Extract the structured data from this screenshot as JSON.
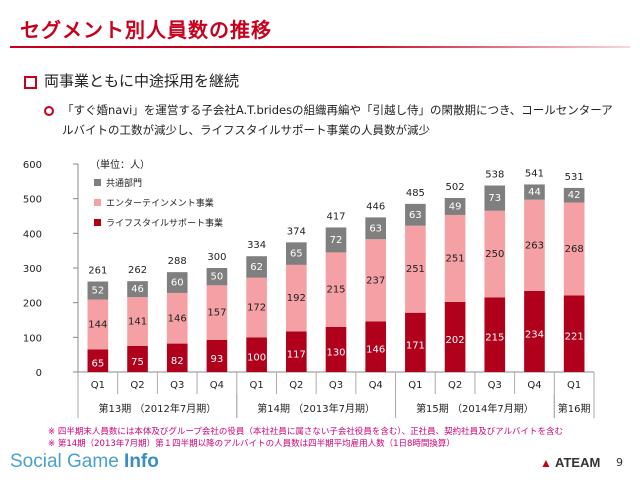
{
  "slide": {
    "title": "セグメント別人員数の推移",
    "headline": "両事業ともに中途採用を継続",
    "description": "「すぐ婚navi」を運営する子会社A.T.bridesの組織再編や「引越し侍」の閑散期につき、コールセンターアルバイトの工数が減少し、ライフスタイルサポート事業の人員数が減少",
    "note1": "※ 四半期末人員数には本体及びグループ会社の役員（本社社員に属さない子会社役員を含む）、正社員、契約社員及びアルバイトを含む",
    "note2": "※ 第14期（2013年7月期）第１四半期以降のアルバイトの人員数は四半期平均雇用人数（1日8時間換算）",
    "brand_left_prefix": "Social Game ",
    "brand_left_bold": "Info",
    "brand_right_mark": "▲",
    "brand_right": "ATEAM",
    "page_number": "9"
  },
  "colors": {
    "accent": "#c8001e",
    "life": "#b0001c",
    "ent": "#f4a0a4",
    "common": "#7f7f7f"
  },
  "chart_data": {
    "type": "bar",
    "stacked": true,
    "unit_label": "（単位：人）",
    "categories": [
      "Q1",
      "Q2",
      "Q3",
      "Q4",
      "Q1",
      "Q2",
      "Q3",
      "Q4",
      "Q1",
      "Q2",
      "Q3",
      "Q4",
      "Q1"
    ],
    "groups": [
      {
        "label": "第13期 （2012年7月期）",
        "start": 0,
        "end": 3
      },
      {
        "label": "第14期 （2013年7月期）",
        "start": 4,
        "end": 7
      },
      {
        "label": "第15期 （2014年7月期）",
        "start": 8,
        "end": 11
      },
      {
        "label": "第16期",
        "start": 12,
        "end": 12
      }
    ],
    "series": [
      {
        "name": "ライフスタイルサポート事業",
        "color": "#b0001c",
        "values": [
          65,
          75,
          82,
          93,
          100,
          117,
          130,
          146,
          171,
          202,
          215,
          234,
          221
        ]
      },
      {
        "name": "エンターテインメント事業",
        "color": "#f4a0a4",
        "values": [
          144,
          141,
          146,
          157,
          172,
          192,
          215,
          237,
          251,
          251,
          250,
          263,
          268
        ]
      },
      {
        "name": "共通部門",
        "color": "#7f7f7f",
        "values": [
          52,
          46,
          60,
          50,
          62,
          65,
          72,
          63,
          63,
          49,
          73,
          44,
          42
        ]
      }
    ],
    "totals": [
      261,
      262,
      288,
      300,
      334,
      374,
      417,
      446,
      485,
      502,
      538,
      541,
      531
    ],
    "ylim": [
      0,
      600
    ],
    "yticks": [
      0,
      100,
      200,
      300,
      400,
      500,
      600
    ],
    "legend_order": [
      "共通部門",
      "エンターテインメント事業",
      "ライフスタイルサポート事業"
    ],
    "legend_position": "top-left",
    "grid": false
  }
}
